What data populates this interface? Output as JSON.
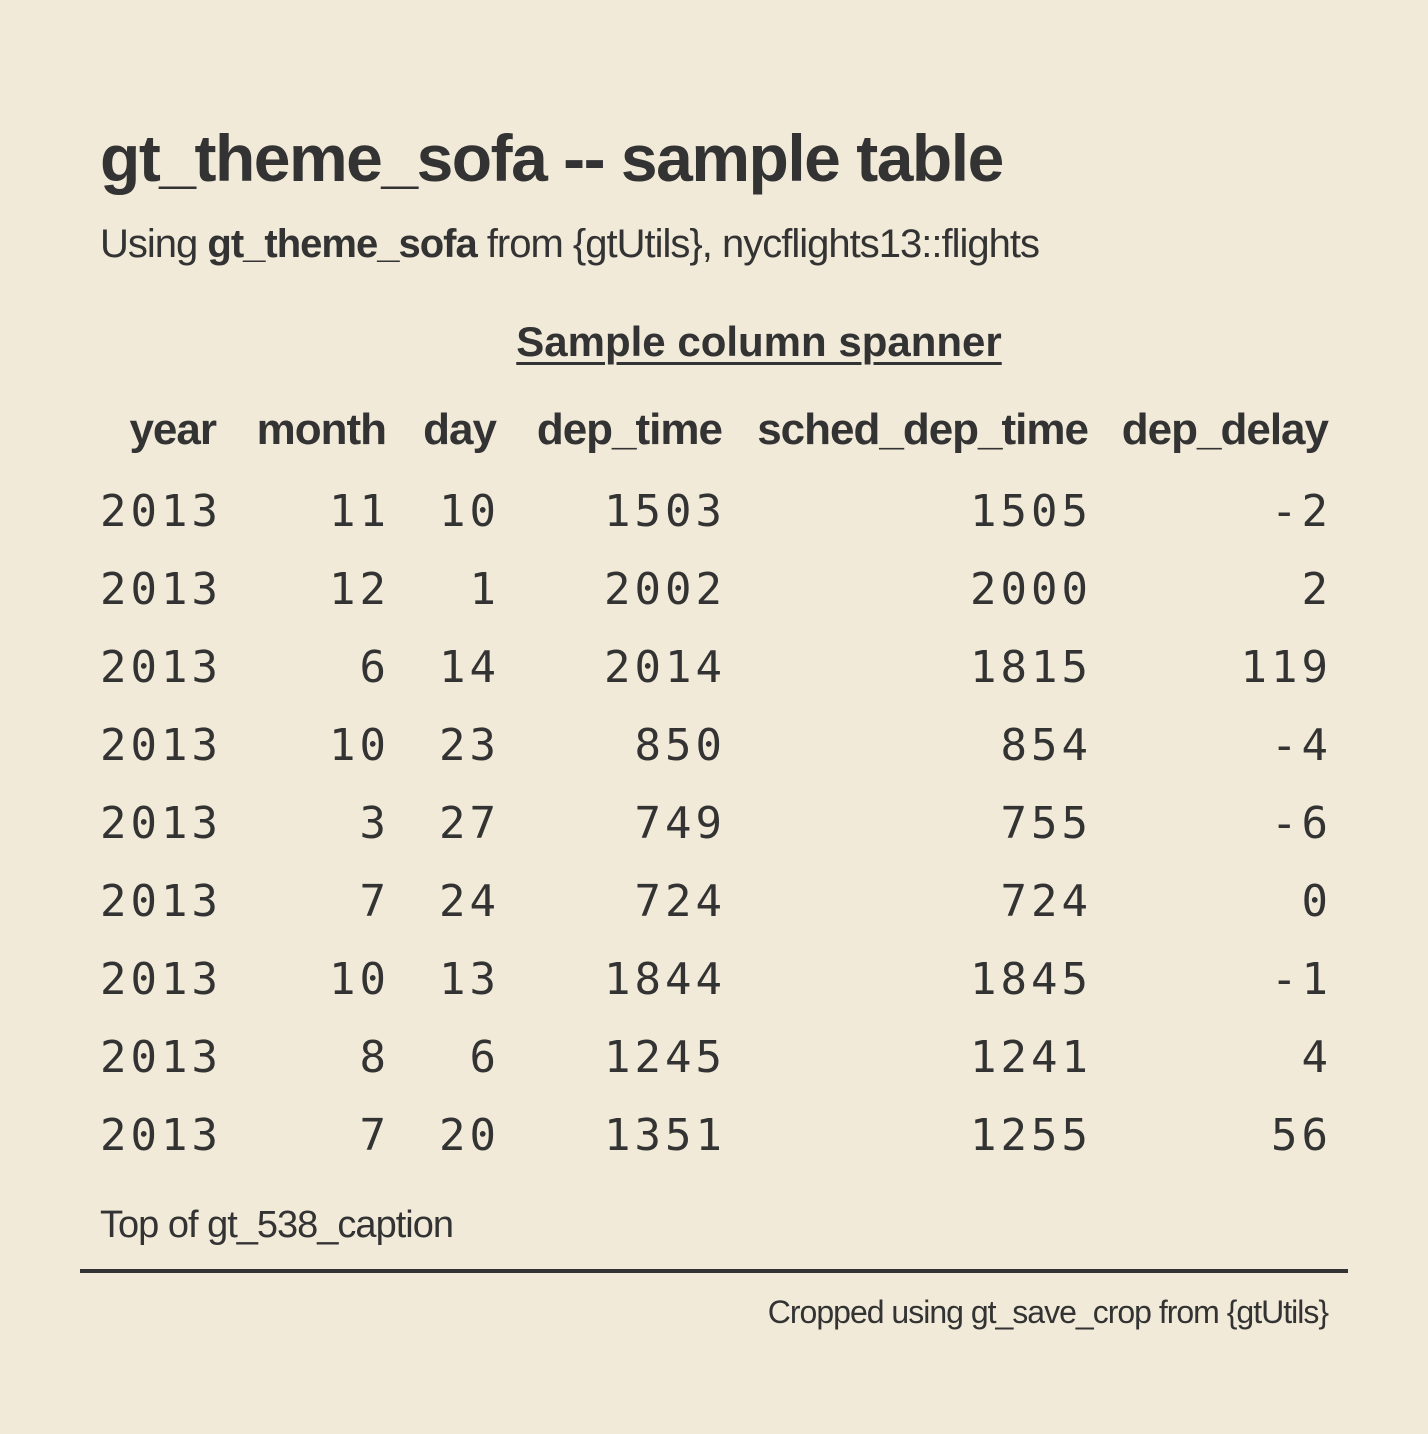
{
  "header": {
    "title": "gt_theme_sofa -- sample table",
    "subtitle_prefix": "Using ",
    "subtitle_bold": "gt_theme_sofa",
    "subtitle_suffix": " from {gtUtils}, nycflights13::flights"
  },
  "table": {
    "spanner": "Sample column spanner",
    "columns": [
      "year",
      "month",
      "day",
      "dep_time",
      "sched_dep_time",
      "dep_delay"
    ],
    "rows": [
      [
        "2013",
        "11",
        "10",
        "1503",
        "1505",
        "-2"
      ],
      [
        "2013",
        "12",
        "1",
        "2002",
        "2000",
        "2"
      ],
      [
        "2013",
        "6",
        "14",
        "2014",
        "1815",
        "119"
      ],
      [
        "2013",
        "10",
        "23",
        "850",
        "854",
        "-4"
      ],
      [
        "2013",
        "3",
        "27",
        "749",
        "755",
        "-6"
      ],
      [
        "2013",
        "7",
        "24",
        "724",
        "724",
        "0"
      ],
      [
        "2013",
        "10",
        "13",
        "1844",
        "1845",
        "-1"
      ],
      [
        "2013",
        "8",
        "6",
        "1245",
        "1241",
        "4"
      ],
      [
        "2013",
        "7",
        "20",
        "1351",
        "1255",
        "56"
      ]
    ]
  },
  "footer": {
    "caption": "Top of gt_538_caption",
    "source_note": "Cropped using gt_save_crop from {gtUtils}"
  },
  "colors": {
    "background": "#f1ead8",
    "text": "#333333"
  }
}
